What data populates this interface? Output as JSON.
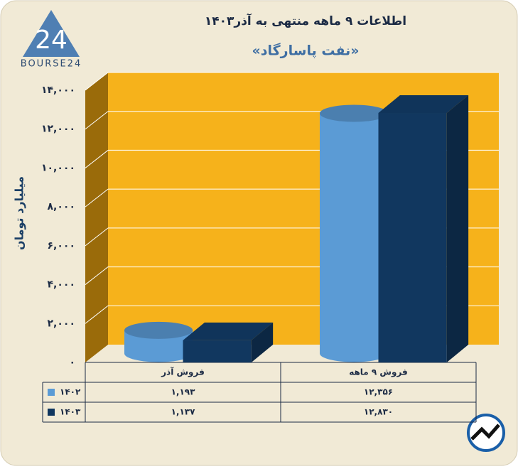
{
  "logo": {
    "mark": "24",
    "text": "BOURSE24"
  },
  "chart_data": {
    "type": "bar3d",
    "title": "اطلاعات ۹ ماهه منتهی به آذر۱۴۰۳",
    "subtitle": "«نفت پاسارگاد»",
    "y_label": "میلیارد تومان",
    "categories": [
      "فروش آذر",
      "فروش ۹ ماهه"
    ],
    "series": [
      {
        "name": "۱۴۰۲",
        "color": "#5b9bd5",
        "shape": "cylinder",
        "values": [
          1193,
          12356
        ],
        "value_labels": [
          "۱,۱۹۳",
          "۱۲,۳۵۶"
        ]
      },
      {
        "name": "۱۴۰۳",
        "color": "#11375f",
        "shape": "box",
        "values": [
          1137,
          12830
        ],
        "value_labels": [
          "۱,۱۳۷",
          "۱۲,۸۳۰"
        ]
      }
    ],
    "ylim": [
      0,
      14000
    ],
    "yticks": [
      {
        "value": 0,
        "label": "۰"
      },
      {
        "value": 2000,
        "label": "۲,۰۰۰"
      },
      {
        "value": 4000,
        "label": "۴,۰۰۰"
      },
      {
        "value": 6000,
        "label": "۶,۰۰۰"
      },
      {
        "value": 8000,
        "label": "۸,۰۰۰"
      },
      {
        "value": 10000,
        "label": "۱۰,۰۰۰"
      },
      {
        "value": 12000,
        "label": "۱۲,۰۰۰"
      },
      {
        "value": 14000,
        "label": "۱۴,۰۰۰"
      }
    ],
    "grid": true,
    "wall_color": "#f6b21b"
  }
}
